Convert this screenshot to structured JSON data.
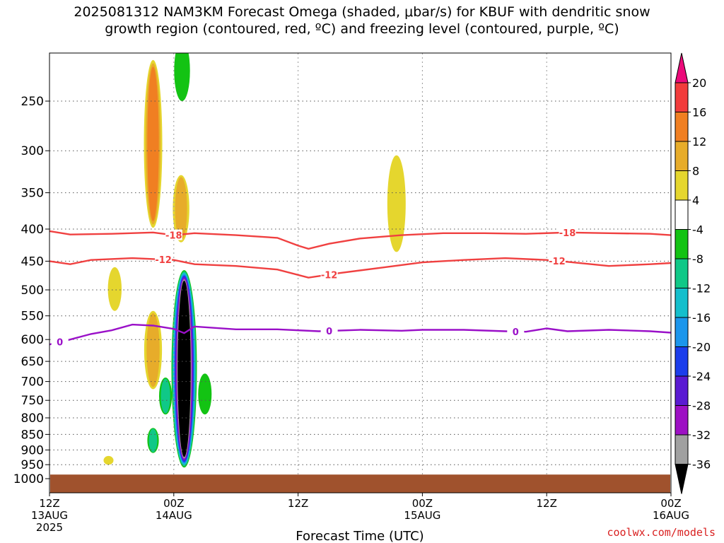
{
  "title_line1": "2025081312 NAM3KM Forecast Omega (shaded, μbar/s) for KBUF with dendritic snow",
  "title_line2": "growth region (contoured, red, ºC) and freezing level (contoured, purple, ºC)",
  "credit": "coolwx.com/models",
  "chart_data": {
    "type": "heatmap",
    "title": "2025081312 NAM3KM Forecast Omega (shaded, μbar/s) for KBUF with dendritic snow growth region (contoured, red, ºC) and freezing level (contoured, purple, ºC)",
    "xlabel": "Forecast Time (UTC)",
    "ylabel": "",
    "x_ticks": [
      {
        "hour": 0,
        "lines": [
          "12Z",
          "13AUG",
          "2025"
        ]
      },
      {
        "hour": 12,
        "lines": [
          "00Z",
          "14AUG"
        ]
      },
      {
        "hour": 24,
        "lines": [
          "12Z"
        ]
      },
      {
        "hour": 36,
        "lines": [
          "00Z",
          "15AUG"
        ]
      },
      {
        "hour": 48,
        "lines": [
          "12Z"
        ]
      },
      {
        "hour": 60,
        "lines": [
          "00Z",
          "16AUG"
        ]
      }
    ],
    "xlim_hours": [
      0,
      60
    ],
    "y_ticks": [
      250,
      300,
      350,
      400,
      450,
      500,
      550,
      600,
      650,
      700,
      750,
      800,
      850,
      900,
      950,
      1000
    ],
    "ylim_hPa": [
      200,
      1050
    ],
    "y_scale": "log-pressure (inverted)",
    "grid": true,
    "colorbar": {
      "labels": [
        "20",
        "16",
        "12",
        "8",
        "4",
        "-4",
        "-8",
        "-12",
        "-16",
        "-20",
        "-24",
        "-28",
        "-32",
        "-36"
      ],
      "colors": [
        "#ec0a7a",
        "#f23c3c",
        "#f07f22",
        "#e7ac2a",
        "#e5d62e",
        "#ffffff",
        "#13c313",
        "#10c887",
        "#14bfcc",
        "#1c96ec",
        "#1c3eec",
        "#5a1ad2",
        "#9d10c4",
        "#a0a0a0",
        "#000000"
      ]
    },
    "contours": [
      {
        "label": "-18",
        "color": "#f04040",
        "points": [
          [
            0,
            403
          ],
          [
            2,
            408
          ],
          [
            6,
            407
          ],
          [
            10,
            405
          ],
          [
            12,
            409
          ],
          [
            14,
            406
          ],
          [
            18,
            409
          ],
          [
            22,
            413
          ],
          [
            24,
            425
          ],
          [
            25,
            430
          ],
          [
            27,
            422
          ],
          [
            30,
            414
          ],
          [
            34,
            409
          ],
          [
            38,
            406
          ],
          [
            42,
            406
          ],
          [
            46,
            407
          ],
          [
            50,
            405
          ],
          [
            54,
            406
          ],
          [
            58,
            407
          ],
          [
            60,
            409
          ]
        ]
      },
      {
        "label": "-12",
        "color": "#f04040",
        "points": [
          [
            0,
            450
          ],
          [
            2,
            455
          ],
          [
            4,
            448
          ],
          [
            8,
            445
          ],
          [
            12,
            448
          ],
          [
            14,
            455
          ],
          [
            18,
            458
          ],
          [
            22,
            464
          ],
          [
            25,
            478
          ],
          [
            28,
            470
          ],
          [
            32,
            461
          ],
          [
            36,
            452
          ],
          [
            40,
            448
          ],
          [
            44,
            445
          ],
          [
            48,
            448
          ],
          [
            50,
            451
          ],
          [
            54,
            458
          ],
          [
            58,
            455
          ],
          [
            60,
            453
          ]
        ]
      },
      {
        "label": "0",
        "color": "#9a10c8",
        "points": [
          [
            0,
            611
          ],
          [
            2,
            600
          ],
          [
            4,
            588
          ],
          [
            6,
            580
          ],
          [
            8,
            568
          ],
          [
            10,
            570
          ],
          [
            12,
            577
          ],
          [
            13,
            586
          ],
          [
            14,
            572
          ],
          [
            18,
            578
          ],
          [
            22,
            578
          ],
          [
            26,
            582
          ],
          [
            30,
            579
          ],
          [
            34,
            581
          ],
          [
            36,
            579
          ],
          [
            40,
            579
          ],
          [
            44,
            582
          ],
          [
            46,
            583
          ],
          [
            48,
            576
          ],
          [
            50,
            582
          ],
          [
            54,
            579
          ],
          [
            58,
            582
          ],
          [
            60,
            585
          ]
        ]
      }
    ],
    "omega_features": [
      {
        "hour": 10.0,
        "top": 215,
        "bottom": 398,
        "peak": 12
      },
      {
        "hour": 12.7,
        "top": 328,
        "bottom": 420,
        "peak": 8
      },
      {
        "hour": 6.3,
        "top": 460,
        "bottom": 540,
        "peak": 4
      },
      {
        "hour": 10.0,
        "top": 540,
        "bottom": 720,
        "peak": 8
      },
      {
        "hour": 33.5,
        "top": 305,
        "bottom": 435,
        "peak": 4
      },
      {
        "hour": 5.7,
        "top": 920,
        "bottom": 950,
        "peak": 4
      },
      {
        "hour": 13.0,
        "top": 465,
        "bottom": 960,
        "peak": -36
      },
      {
        "hour": 12.8,
        "top": 200,
        "bottom": 250,
        "peak": -4
      },
      {
        "hour": 11.2,
        "top": 690,
        "bottom": 790,
        "peak": -8
      },
      {
        "hour": 10.0,
        "top": 830,
        "bottom": 910,
        "peak": -8
      },
      {
        "hour": 15.0,
        "top": 680,
        "bottom": 790,
        "peak": -4
      }
    ],
    "terrain_surface_hPa": 985
  }
}
